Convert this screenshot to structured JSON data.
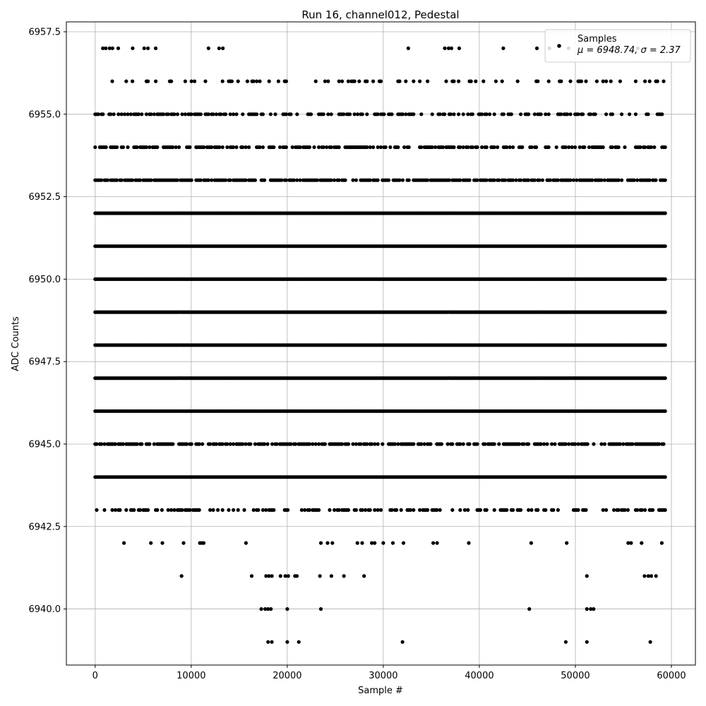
{
  "chart_data": {
    "type": "scatter",
    "title": "Run 16, channel012, Pedestal",
    "xlabel": "Sample #",
    "ylabel": "ADC Counts",
    "xlim": [
      -3000,
      62500
    ],
    "ylim": [
      6938.3,
      6957.8
    ],
    "xticks": [
      0,
      10000,
      20000,
      30000,
      40000,
      50000,
      60000
    ],
    "xtick_labels": [
      "0",
      "10000",
      "20000",
      "30000",
      "40000",
      "50000",
      "60000"
    ],
    "yticks": [
      6940.0,
      6942.5,
      6945.0,
      6947.5,
      6950.0,
      6952.5,
      6955.0,
      6957.5
    ],
    "ytick_labels": [
      "6940.0",
      "6942.5",
      "6945.0",
      "6947.5",
      "6950.0",
      "6952.5",
      "6955.0",
      "6957.5"
    ],
    "grid": true,
    "legend_position": "top-right",
    "series": [
      {
        "name": "Samples",
        "color": "#000000",
        "marker": "circle",
        "n_samples": 59500,
        "points": [
          {
            "x": 800,
            "y": 6957
          },
          {
            "x": 1100,
            "y": 6957
          },
          {
            "x": 1500,
            "y": 6957
          },
          {
            "x": 1800,
            "y": 6957
          },
          {
            "x": 2400,
            "y": 6957
          },
          {
            "x": 3900,
            "y": 6957
          },
          {
            "x": 5100,
            "y": 6957
          },
          {
            "x": 5500,
            "y": 6957
          },
          {
            "x": 6300,
            "y": 6957
          },
          {
            "x": 11800,
            "y": 6957
          },
          {
            "x": 12900,
            "y": 6957
          },
          {
            "x": 13300,
            "y": 6957
          },
          {
            "x": 32600,
            "y": 6957
          },
          {
            "x": 36400,
            "y": 6957
          },
          {
            "x": 36800,
            "y": 6957
          },
          {
            "x": 37100,
            "y": 6957
          },
          {
            "x": 37900,
            "y": 6957
          },
          {
            "x": 42500,
            "y": 6957
          },
          {
            "x": 46000,
            "y": 6957
          },
          {
            "x": 47300,
            "y": 6957
          },
          {
            "x": 49300,
            "y": 6957
          },
          {
            "x": 56500,
            "y": 6957
          },
          {
            "x": 18000,
            "y": 6939
          },
          {
            "x": 18400,
            "y": 6939
          },
          {
            "x": 20000,
            "y": 6939
          },
          {
            "x": 21200,
            "y": 6939
          },
          {
            "x": 32000,
            "y": 6939
          },
          {
            "x": 49000,
            "y": 6939
          },
          {
            "x": 51200,
            "y": 6939
          },
          {
            "x": 57800,
            "y": 6939
          },
          {
            "x": 17300,
            "y": 6940
          },
          {
            "x": 17700,
            "y": 6940
          },
          {
            "x": 18000,
            "y": 6940
          },
          {
            "x": 18300,
            "y": 6940
          },
          {
            "x": 20000,
            "y": 6940
          },
          {
            "x": 23500,
            "y": 6940
          },
          {
            "x": 45200,
            "y": 6940
          },
          {
            "x": 51200,
            "y": 6940
          },
          {
            "x": 51600,
            "y": 6940
          },
          {
            "x": 51900,
            "y": 6940
          },
          {
            "x": 9000,
            "y": 6941
          },
          {
            "x": 16300,
            "y": 6941
          },
          {
            "x": 17800,
            "y": 6941
          },
          {
            "x": 18100,
            "y": 6941
          },
          {
            "x": 18400,
            "y": 6941
          },
          {
            "x": 19300,
            "y": 6941
          },
          {
            "x": 19800,
            "y": 6941
          },
          {
            "x": 20100,
            "y": 6941
          },
          {
            "x": 20800,
            "y": 6941
          },
          {
            "x": 21000,
            "y": 6941
          },
          {
            "x": 23400,
            "y": 6941
          },
          {
            "x": 24600,
            "y": 6941
          },
          {
            "x": 25900,
            "y": 6941
          },
          {
            "x": 28000,
            "y": 6941
          },
          {
            "x": 51200,
            "y": 6941
          },
          {
            "x": 57200,
            "y": 6941
          },
          {
            "x": 57600,
            "y": 6941
          },
          {
            "x": 57900,
            "y": 6941
          },
          {
            "x": 58400,
            "y": 6941
          },
          {
            "x": 3000,
            "y": 6942
          },
          {
            "x": 5800,
            "y": 6942
          },
          {
            "x": 7000,
            "y": 6942
          },
          {
            "x": 9200,
            "y": 6942
          },
          {
            "x": 10900,
            "y": 6942
          },
          {
            "x": 11100,
            "y": 6942
          },
          {
            "x": 11300,
            "y": 6942
          },
          {
            "x": 15700,
            "y": 6942
          },
          {
            "x": 23500,
            "y": 6942
          },
          {
            "x": 24200,
            "y": 6942
          },
          {
            "x": 24700,
            "y": 6942
          },
          {
            "x": 27300,
            "y": 6942
          },
          {
            "x": 27800,
            "y": 6942
          },
          {
            "x": 28800,
            "y": 6942
          },
          {
            "x": 29100,
            "y": 6942
          },
          {
            "x": 30000,
            "y": 6942
          },
          {
            "x": 31000,
            "y": 6942
          },
          {
            "x": 32100,
            "y": 6942
          },
          {
            "x": 35200,
            "y": 6942
          },
          {
            "x": 35600,
            "y": 6942
          },
          {
            "x": 38900,
            "y": 6942
          },
          {
            "x": 45400,
            "y": 6942
          },
          {
            "x": 49100,
            "y": 6942
          },
          {
            "x": 55500,
            "y": 6942
          },
          {
            "x": 55800,
            "y": 6942
          },
          {
            "x": 56900,
            "y": 6942
          },
          {
            "x": 59000,
            "y": 6942
          }
        ],
        "dense_levels": [
          {
            "y": 6943,
            "x_range": [
              0,
              59500
            ],
            "density": 0.45
          },
          {
            "y": 6944,
            "x_range": [
              0,
              59500
            ],
            "density": 1.0
          },
          {
            "y": 6945,
            "x_range": [
              0,
              59500
            ],
            "density": 0.7
          },
          {
            "y": 6946,
            "x_range": [
              0,
              59500
            ],
            "density": 1.0
          },
          {
            "y": 6947,
            "x_range": [
              0,
              59500
            ],
            "density": 1.0
          },
          {
            "y": 6948,
            "x_range": [
              0,
              59500
            ],
            "density": 1.0
          },
          {
            "y": 6949,
            "x_range": [
              0,
              59500
            ],
            "density": 1.0
          },
          {
            "y": 6950,
            "x_range": [
              0,
              59500
            ],
            "density": 1.0
          },
          {
            "y": 6951,
            "x_range": [
              0,
              59500
            ],
            "density": 1.0
          },
          {
            "y": 6952,
            "x_range": [
              0,
              59500
            ],
            "density": 1.0
          },
          {
            "y": 6953,
            "x_range": [
              0,
              59500
            ],
            "density": 0.75
          },
          {
            "y": 6954,
            "x_range": [
              0,
              59500
            ],
            "density": 0.6
          },
          {
            "y": 6955,
            "x_range": [
              0,
              59500
            ],
            "density": 0.45
          },
          {
            "y": 6956,
            "x_range": [
              0,
              59500
            ],
            "density": 0.2
          }
        ]
      }
    ],
    "legend": {
      "entry_label": "Samples",
      "stats_label": "μ = 6948.74, σ = 2.37"
    },
    "stats": {
      "mean": 6948.74,
      "std": 2.37
    }
  }
}
